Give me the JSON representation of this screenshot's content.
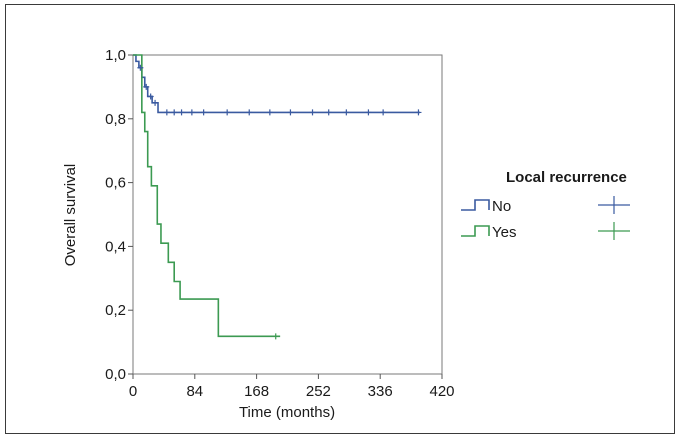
{
  "chart_data": {
    "type": "line",
    "xlabel": "Time (months)",
    "ylabel": "Overall survival",
    "xlim": [
      0,
      420
    ],
    "ylim": [
      0,
      1.0
    ],
    "x_ticks": [
      0,
      84,
      168,
      252,
      336,
      420
    ],
    "x_tick_labels": [
      "0",
      "84",
      "168",
      "252",
      "336",
      "420"
    ],
    "y_ticks": [
      0,
      0.2,
      0.4,
      0.6,
      0.8,
      1.0
    ],
    "y_tick_labels": [
      "0,0",
      "0,2",
      "0,4",
      "0,6",
      "0,8",
      "1,0"
    ],
    "grid": false,
    "legend": {
      "title": "Local recurrence",
      "placement": "right",
      "censored_symbol": "+"
    },
    "series": [
      {
        "name": "No",
        "color": "#3a5aa0",
        "steps": [
          [
            0,
            1.0
          ],
          [
            4,
            0.98
          ],
          [
            8,
            0.96
          ],
          [
            12,
            0.93
          ],
          [
            16,
            0.9
          ],
          [
            20,
            0.87
          ],
          [
            26,
            0.85
          ],
          [
            34,
            0.82
          ],
          [
            390,
            0.82
          ]
        ],
        "censored": [
          [
            10,
            0.96
          ],
          [
            18,
            0.9
          ],
          [
            24,
            0.87
          ],
          [
            30,
            0.85
          ],
          [
            46,
            0.82
          ],
          [
            56,
            0.82
          ],
          [
            66,
            0.82
          ],
          [
            80,
            0.82
          ],
          [
            96,
            0.82
          ],
          [
            128,
            0.82
          ],
          [
            158,
            0.82
          ],
          [
            186,
            0.82
          ],
          [
            214,
            0.82
          ],
          [
            244,
            0.82
          ],
          [
            266,
            0.82
          ],
          [
            290,
            0.82
          ],
          [
            320,
            0.82
          ],
          [
            340,
            0.82
          ],
          [
            388,
            0.82
          ]
        ]
      },
      {
        "name": "Yes",
        "color": "#3c9a52",
        "steps": [
          [
            0,
            1.0
          ],
          [
            12,
            1.0
          ],
          [
            12,
            0.82
          ],
          [
            16,
            0.82
          ],
          [
            16,
            0.76
          ],
          [
            20,
            0.76
          ],
          [
            20,
            0.65
          ],
          [
            25,
            0.65
          ],
          [
            25,
            0.59
          ],
          [
            33,
            0.59
          ],
          [
            33,
            0.47
          ],
          [
            38,
            0.47
          ],
          [
            38,
            0.41
          ],
          [
            48,
            0.41
          ],
          [
            48,
            0.35
          ],
          [
            56,
            0.35
          ],
          [
            56,
            0.29
          ],
          [
            64,
            0.29
          ],
          [
            64,
            0.235
          ],
          [
            116,
            0.235
          ],
          [
            116,
            0.118
          ],
          [
            200,
            0.118
          ]
        ],
        "censored": [
          [
            194,
            0.118
          ]
        ]
      }
    ]
  }
}
